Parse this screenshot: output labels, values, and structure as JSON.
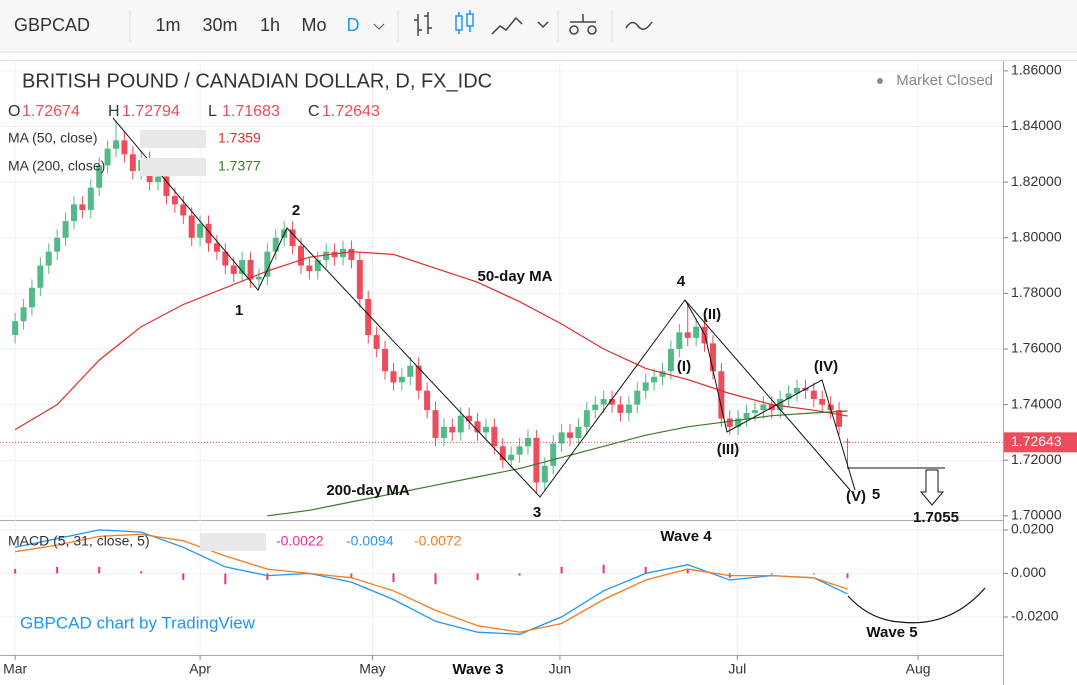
{
  "toolbar": {
    "symbol": "GBPCAD",
    "intervals": [
      "1m",
      "30m",
      "1h",
      "Mo",
      "D"
    ]
  },
  "status": "Market Closed",
  "watermark": "GBPCAD chart by TradingView",
  "chart_data": [
    {
      "type": "candlestick",
      "title": "BRITISH POUND / CANADIAN DOLLAR, D, FX_IDC",
      "ohlc_letters": [
        "O",
        "H",
        "L",
        "C"
      ],
      "up_color": "#53b987",
      "down_color": "#eb4d5c",
      "open": [
        1.765,
        1.77,
        1.775,
        1.782,
        1.79,
        1.795,
        1.8,
        1.806,
        1.812,
        1.81,
        1.818,
        1.826,
        1.832,
        1.835,
        1.83,
        1.824,
        1.828,
        1.82,
        1.822,
        1.815,
        1.812,
        1.808,
        1.8,
        1.805,
        1.798,
        1.795,
        1.79,
        1.787,
        1.792,
        1.785,
        1.786,
        1.795,
        1.8,
        1.803,
        1.797,
        1.79,
        1.788,
        1.792,
        1.795,
        1.793,
        1.796,
        1.792,
        1.778,
        1.765,
        1.76,
        1.752,
        1.748,
        1.75,
        1.754,
        1.745,
        1.738,
        1.728,
        1.732,
        1.73,
        1.736,
        1.734,
        1.73,
        1.732,
        1.725,
        1.72,
        1.722,
        1.725,
        1.728,
        1.712,
        1.718,
        1.726,
        1.73,
        1.728,
        1.732,
        1.738,
        1.74,
        1.742,
        1.74,
        1.737,
        1.74,
        1.745,
        1.748,
        1.75,
        1.752,
        1.76,
        1.766,
        1.764,
        1.768,
        1.762,
        1.752,
        1.735,
        1.732,
        1.735,
        1.737,
        1.738,
        1.74,
        1.738,
        1.742,
        1.744,
        1.746,
        1.745,
        1.742,
        1.74,
        1.738,
        1.72674
      ],
      "high": [
        1.773,
        1.778,
        1.785,
        1.793,
        1.798,
        1.803,
        1.809,
        1.815,
        1.815,
        1.821,
        1.829,
        1.835,
        1.842,
        1.838,
        1.833,
        1.831,
        1.831,
        1.825,
        1.825,
        1.818,
        1.815,
        1.811,
        1.808,
        1.808,
        1.801,
        1.798,
        1.793,
        1.795,
        1.795,
        1.789,
        1.798,
        1.803,
        1.806,
        1.806,
        1.8,
        1.793,
        1.795,
        1.798,
        1.798,
        1.799,
        1.799,
        1.795,
        1.781,
        1.768,
        1.763,
        1.755,
        1.753,
        1.757,
        1.757,
        1.748,
        1.741,
        1.735,
        1.735,
        1.739,
        1.739,
        1.737,
        1.735,
        1.735,
        1.728,
        1.725,
        1.728,
        1.731,
        1.731,
        1.721,
        1.729,
        1.733,
        1.733,
        1.735,
        1.741,
        1.743,
        1.745,
        1.745,
        1.743,
        1.743,
        1.748,
        1.751,
        1.753,
        1.755,
        1.763,
        1.769,
        1.776,
        1.771,
        1.771,
        1.765,
        1.755,
        1.738,
        1.738,
        1.74,
        1.741,
        1.743,
        1.743,
        1.745,
        1.747,
        1.749,
        1.749,
        1.748,
        1.745,
        1.743,
        1.741,
        1.72794
      ],
      "low": [
        1.762,
        1.767,
        1.772,
        1.779,
        1.787,
        1.792,
        1.797,
        1.803,
        1.807,
        1.807,
        1.815,
        1.823,
        1.829,
        1.827,
        1.821,
        1.821,
        1.817,
        1.817,
        1.812,
        1.809,
        1.805,
        1.797,
        1.797,
        1.795,
        1.792,
        1.787,
        1.784,
        1.784,
        1.782,
        1.782,
        1.783,
        1.792,
        1.797,
        1.794,
        1.787,
        1.785,
        1.785,
        1.789,
        1.79,
        1.79,
        1.789,
        1.775,
        1.762,
        1.757,
        1.749,
        1.745,
        1.745,
        1.747,
        1.742,
        1.735,
        1.725,
        1.725,
        1.727,
        1.727,
        1.731,
        1.727,
        1.727,
        1.722,
        1.717,
        1.717,
        1.719,
        1.722,
        1.708,
        1.709,
        1.715,
        1.723,
        1.725,
        1.725,
        1.729,
        1.735,
        1.737,
        1.737,
        1.734,
        1.734,
        1.737,
        1.742,
        1.745,
        1.747,
        1.749,
        1.757,
        1.761,
        1.761,
        1.759,
        1.749,
        1.732,
        1.729,
        1.729,
        1.732,
        1.734,
        1.735,
        1.735,
        1.735,
        1.739,
        1.741,
        1.742,
        1.739,
        1.737,
        1.735,
        1.729,
        1.71683
      ],
      "close": [
        1.77,
        1.775,
        1.782,
        1.79,
        1.795,
        1.8,
        1.806,
        1.812,
        1.81,
        1.818,
        1.826,
        1.832,
        1.835,
        1.83,
        1.824,
        1.828,
        1.82,
        1.822,
        1.815,
        1.812,
        1.808,
        1.8,
        1.805,
        1.798,
        1.795,
        1.79,
        1.787,
        1.792,
        1.785,
        1.786,
        1.795,
        1.8,
        1.803,
        1.797,
        1.79,
        1.788,
        1.792,
        1.795,
        1.793,
        1.796,
        1.792,
        1.778,
        1.765,
        1.76,
        1.752,
        1.748,
        1.75,
        1.754,
        1.745,
        1.738,
        1.728,
        1.732,
        1.73,
        1.736,
        1.734,
        1.73,
        1.732,
        1.725,
        1.72,
        1.722,
        1.725,
        1.728,
        1.712,
        1.718,
        1.726,
        1.73,
        1.728,
        1.732,
        1.738,
        1.74,
        1.742,
        1.74,
        1.737,
        1.74,
        1.745,
        1.748,
        1.75,
        1.752,
        1.76,
        1.766,
        1.764,
        1.768,
        1.762,
        1.752,
        1.735,
        1.732,
        1.735,
        1.737,
        1.738,
        1.74,
        1.738,
        1.742,
        1.744,
        1.746,
        1.745,
        1.742,
        1.74,
        1.738,
        1.732,
        1.72643
      ],
      "series": [
        {
          "name": "MA (50, close)",
          "color": "#e02c2c",
          "values": [
            1.731,
            1.74,
            1.756,
            1.768,
            1.776,
            1.782,
            1.788,
            1.793,
            1.795,
            1.794,
            1.789,
            1.784,
            1.777,
            1.769,
            1.76,
            1.753,
            1.749,
            1.744,
            1.74,
            1.738,
            1.7359
          ]
        },
        {
          "name": "MA (200, close)",
          "color": "#3d7a28",
          "values": [
            null,
            null,
            null,
            null,
            null,
            null,
            1.7,
            1.702,
            1.705,
            1.708,
            1.711,
            1.714,
            1.717,
            1.721,
            1.725,
            1.729,
            1.732,
            1.734,
            1.736,
            1.737,
            1.7377
          ]
        }
      ],
      "xlim": [
        -1.8,
        117.5
      ],
      "xticks": [
        {
          "value": 0,
          "label": "Mar"
        },
        {
          "value": 22,
          "label": "Apr"
        },
        {
          "value": 42.5,
          "label": "May"
        },
        {
          "value": 64.8,
          "label": "Jun"
        },
        {
          "value": 85.9,
          "label": "Jul"
        },
        {
          "value": 107.4,
          "label": "Aug"
        }
      ],
      "ylim": [
        1.6985,
        1.8632
      ],
      "yticks": [
        {
          "value": 1.7,
          "label": "1.70000"
        },
        {
          "value": 1.72,
          "label": "1.72000"
        },
        {
          "value": 1.74,
          "label": "1.74000"
        },
        {
          "value": 1.76,
          "label": "1.76000"
        },
        {
          "value": 1.78,
          "label": "1.78000"
        },
        {
          "value": 1.8,
          "label": "1.80000"
        },
        {
          "value": 1.82,
          "label": "1.82000"
        },
        {
          "value": 1.84,
          "label": "1.84000"
        },
        {
          "value": 1.86,
          "label": "1.86000"
        }
      ],
      "annotations": [
        "1",
        "2",
        "3",
        "4",
        "(I)",
        "(II)",
        "(III)",
        "(IV)",
        "(V)",
        "5",
        "50-day MA",
        "200-day MA",
        "1.7055"
      ]
    },
    {
      "type": "macd",
      "title": "MACD (5, 31, close, 5)",
      "series": [
        {
          "color": "#ef2c8c",
          "values": [
            0.002,
            0.003,
            0.003,
            0.001,
            -0.003,
            -0.005,
            -0.003,
            0,
            -0.002,
            -0.004,
            -0.005,
            -0.003,
            -0.001,
            0.003,
            0.004,
            0.003,
            0.002,
            -0.002,
            0,
            0,
            -0.0022
          ]
        },
        {
          "color": "#2196f3",
          "values": [
            0.012,
            0.016,
            0.02,
            0.019,
            0.012,
            0.003,
            -0.001,
            0.0,
            -0.004,
            -0.012,
            -0.022,
            -0.027,
            -0.028,
            -0.02,
            -0.008,
            0.0,
            0.004,
            -0.003,
            -0.001,
            -0.002,
            -0.0094
          ]
        },
        {
          "color": "#f57c22",
          "values": [
            0.01,
            0.013,
            0.017,
            0.018,
            0.015,
            0.008,
            0.002,
            0.0,
            -0.002,
            -0.008,
            -0.017,
            -0.024,
            -0.027,
            -0.023,
            -0.012,
            -0.003,
            0.002,
            -0.001,
            -0.001,
            -0.002,
            -0.0072
          ]
        }
      ],
      "ylim": [
        -0.0375,
        0.0241
      ],
      "yticks": [
        {
          "value": 0.02,
          "label": "0.0200"
        },
        {
          "value": 0,
          "label": "0.000"
        },
        {
          "value": -0.02,
          "label": "-0.0200"
        }
      ],
      "annotations": [
        "Wave 4",
        "Wave 5",
        "Wave 3"
      ]
    }
  ]
}
